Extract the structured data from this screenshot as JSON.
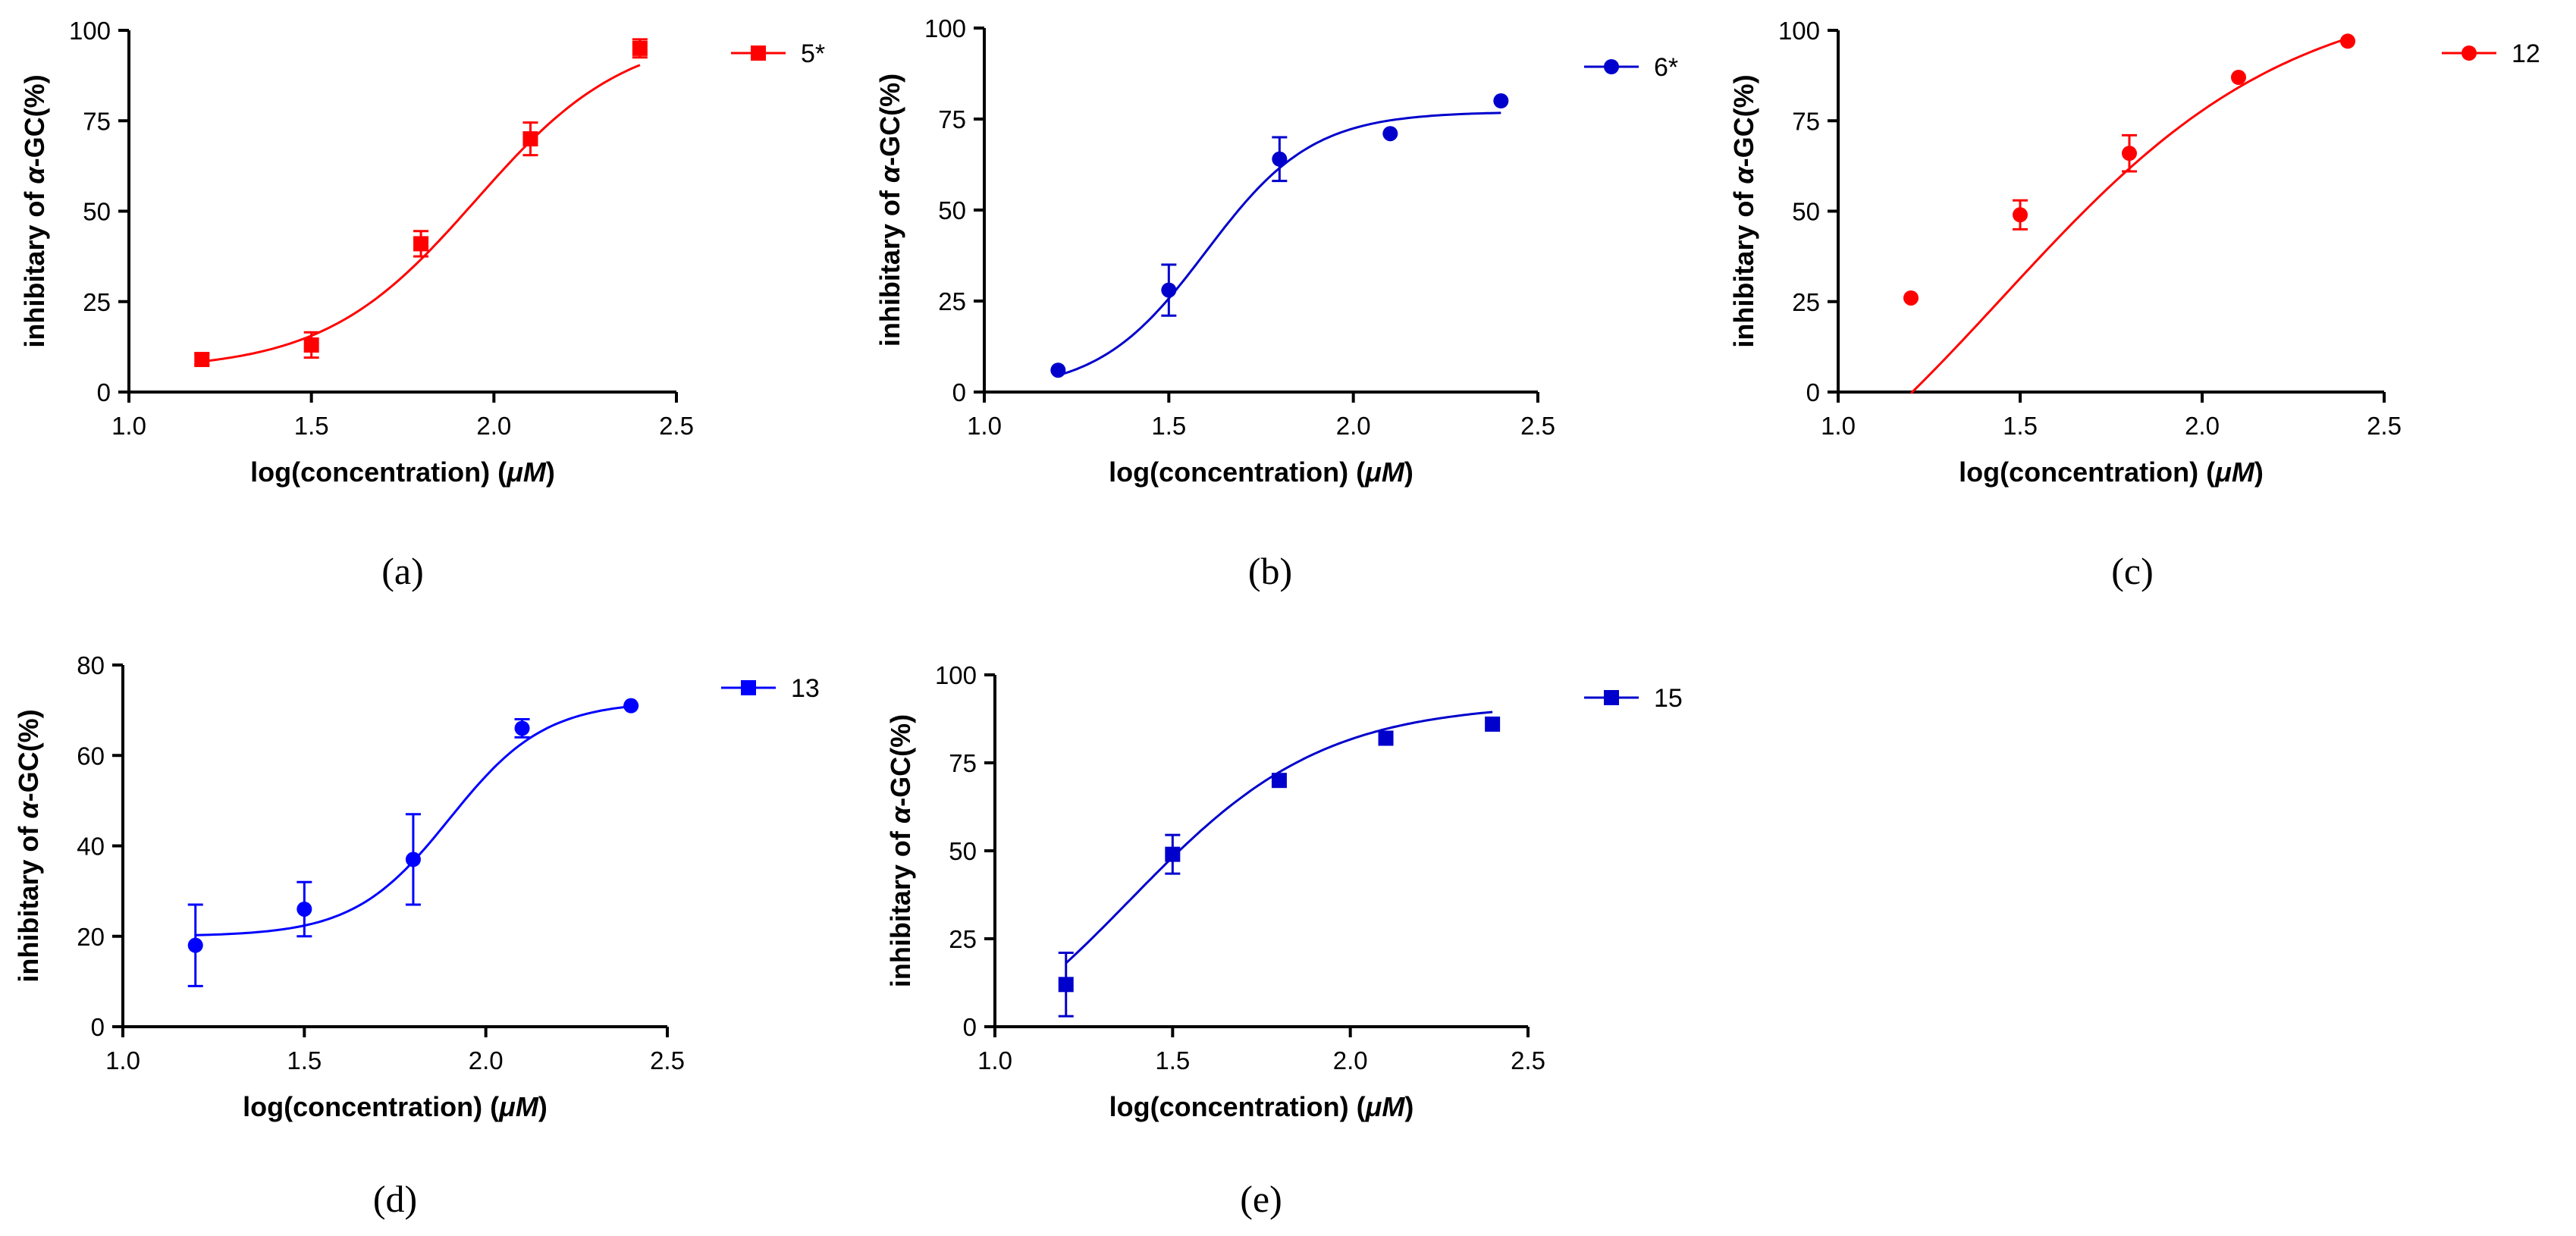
{
  "figure": {
    "common": {
      "xlabel_main": "log(concentration) (",
      "xlabel_unit": "μM",
      "xlabel_close": ")",
      "ylabel_main": "inhibitary of ",
      "ylabel_alpha": "α",
      "ylabel_tail": "-GC(%)"
    }
  },
  "chart_data": [
    {
      "type": "line",
      "panel": "(a)",
      "series_name": "5*",
      "marker": "square",
      "color": "#ff0000",
      "x": [
        1.2,
        1.5,
        1.8,
        2.1,
        2.4
      ],
      "y": [
        9,
        13,
        41,
        70,
        95
      ],
      "err": [
        1.5,
        3.5,
        3.5,
        4.5,
        2.5
      ],
      "fit": {
        "bottom": 6,
        "top": 100,
        "logec50": 1.95,
        "hill": 2.1
      },
      "xlim": [
        1.0,
        2.5
      ],
      "ylim": [
        0,
        100
      ],
      "xticks": [
        "1.0",
        "1.5",
        "2.0",
        "2.5"
      ],
      "yticks": [
        "0",
        "25",
        "50",
        "75",
        "100"
      ]
    },
    {
      "type": "line",
      "panel": "(b)",
      "series_name": "6*",
      "marker": "circle",
      "color": "#0000cc",
      "x": [
        1.2,
        1.5,
        1.8,
        2.1,
        2.4
      ],
      "y": [
        6,
        28,
        64,
        71,
        80
      ],
      "err": [
        0,
        7,
        6,
        0,
        0
      ],
      "fit": {
        "bottom": 0,
        "top": 77,
        "logec50": 1.6,
        "hill": 3.0
      },
      "xlim": [
        1.0,
        2.5
      ],
      "ylim": [
        0,
        100
      ],
      "xticks": [
        "1.0",
        "1.5",
        "2.0",
        "2.5"
      ],
      "yticks": [
        "0",
        "25",
        "50",
        "75",
        "100"
      ]
    },
    {
      "type": "line",
      "panel": "(c)",
      "series_name": "12",
      "marker": "circle",
      "color": "#ff0000",
      "x": [
        1.2,
        1.5,
        1.8,
        2.1,
        2.4
      ],
      "y": [
        26,
        49,
        66,
        87,
        97
      ],
      "err": [
        0,
        4,
        5,
        0,
        0
      ],
      "fit": {
        "bottom": -60,
        "top": 112,
        "logec50": 1.45,
        "hill": 1.1
      },
      "xlim": [
        1.0,
        2.5
      ],
      "ylim": [
        0,
        100
      ],
      "xticks": [
        "1.0",
        "1.5",
        "2.0",
        "2.5"
      ],
      "yticks": [
        "0",
        "25",
        "50",
        "75",
        "100"
      ]
    },
    {
      "type": "line",
      "panel": "(d)",
      "series_name": "13",
      "marker": "circle",
      "color": "#0000ff",
      "legend_marker": "square",
      "x": [
        1.2,
        1.5,
        1.8,
        2.1,
        2.4
      ],
      "y": [
        18,
        26,
        37,
        66,
        71
      ],
      "err": [
        9,
        6,
        10,
        2,
        0
      ],
      "fit": {
        "bottom": 20,
        "top": 72,
        "logec50": 1.9,
        "hill": 3.3
      },
      "xlim": [
        1.0,
        2.5
      ],
      "ylim": [
        0,
        80
      ],
      "xticks": [
        "1.0",
        "1.5",
        "2.0",
        "2.5"
      ],
      "yticks": [
        "0",
        "20",
        "40",
        "60",
        "80"
      ]
    },
    {
      "type": "line",
      "panel": "(e)",
      "series_name": "15",
      "marker": "square",
      "color": "#0000cc",
      "x": [
        1.2,
        1.5,
        1.8,
        2.1,
        2.4
      ],
      "y": [
        12,
        49,
        70,
        82,
        86
      ],
      "err": [
        9,
        5.5,
        0,
        0,
        0
      ],
      "fit": {
        "bottom": -20,
        "top": 92,
        "logec50": 1.38,
        "hill": 1.6
      },
      "xlim": [
        1.0,
        2.5
      ],
      "ylim": [
        0,
        100
      ],
      "xticks": [
        "1.0",
        "1.5",
        "2.0",
        "2.5"
      ],
      "yticks": [
        "0",
        "25",
        "50",
        "75",
        "100"
      ]
    }
  ]
}
